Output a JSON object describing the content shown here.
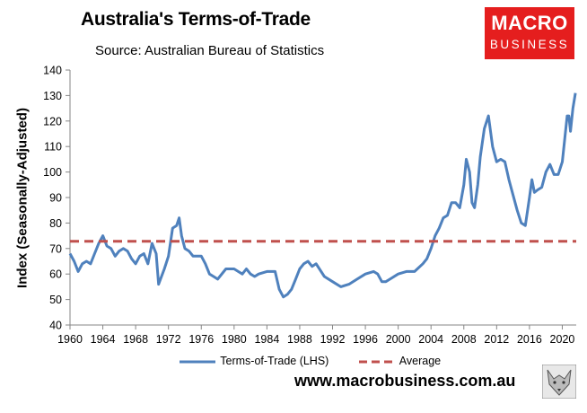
{
  "header": {
    "title": "Australia's Terms-of-Trade",
    "subtitle": "Source: Australian Bureau of Statistics"
  },
  "logo": {
    "line1": "MACRO",
    "line2": "BUSINESS",
    "color": "#e51e1e"
  },
  "footer": {
    "url": "www.macrobusiness.com.au"
  },
  "chart_data": {
    "type": "line",
    "ylabel": "Index (Seasonally-Adjusted)",
    "xlabel": "",
    "ylim": [
      40,
      140
    ],
    "xlim": [
      1960,
      2021.7
    ],
    "y_ticks": [
      40,
      50,
      60,
      70,
      80,
      90,
      100,
      110,
      120,
      130,
      140
    ],
    "x_ticks": [
      "1960",
      "1964",
      "1968",
      "1972",
      "1976",
      "1980",
      "1984",
      "1988",
      "1992",
      "1996",
      "2000",
      "2004",
      "2008",
      "2012",
      "2016",
      "2020"
    ],
    "grid": false,
    "legend_position": "bottom",
    "series": [
      {
        "name": "Terms-of-Trade (LHS)",
        "color": "#4f81bd",
        "style": "solid",
        "x": [
          1960,
          1960.5,
          1961,
          1961.5,
          1962,
          1962.5,
          1963,
          1963.5,
          1964,
          1964.5,
          1965,
          1965.5,
          1966,
          1966.5,
          1967,
          1967.5,
          1968,
          1968.5,
          1969,
          1969.5,
          1970,
          1970.5,
          1970.8,
          1971.5,
          1972,
          1972.5,
          1973,
          1973.3,
          1973.6,
          1974,
          1974.5,
          1975,
          1976,
          1976.5,
          1977,
          1977.5,
          1978,
          1979,
          1980,
          1980.5,
          1981,
          1981.5,
          1982,
          1982.5,
          1983,
          1984,
          1985,
          1985.5,
          1986,
          1986.5,
          1987,
          1987.5,
          1988,
          1988.5,
          1989,
          1989.5,
          1990,
          1991,
          1992,
          1993,
          1994,
          1995,
          1996,
          1997,
          1997.5,
          1998,
          1998.5,
          1999,
          2000,
          2001,
          2002,
          2003,
          2003.5,
          2004,
          2004.5,
          2005,
          2005.5,
          2006,
          2006.5,
          2007,
          2007.5,
          2008,
          2008.3,
          2008.7,
          2009,
          2009.3,
          2009.7,
          2010,
          2010.5,
          2011,
          2011.5,
          2012,
          2012.5,
          2013,
          2013.5,
          2014,
          2014.5,
          2015,
          2015.5,
          2016,
          2016.3,
          2016.6,
          2017,
          2017.5,
          2018,
          2018.5,
          2019,
          2019.5,
          2020,
          2020.3,
          2020.6,
          2020.8,
          2021,
          2021.3,
          2021.6
        ],
        "values": [
          68,
          65,
          61,
          64,
          65,
          64,
          68,
          72,
          75,
          71,
          70,
          67,
          69,
          70,
          69,
          66,
          64,
          67,
          68,
          64,
          72,
          68,
          56,
          62,
          67,
          78,
          79,
          82,
          75,
          70,
          69,
          67,
          67,
          64,
          60,
          59,
          58,
          62,
          62,
          61,
          60,
          62,
          60,
          59,
          60,
          61,
          61,
          54,
          51,
          52,
          54,
          58,
          62,
          64,
          65,
          63,
          64,
          59,
          57,
          55,
          56,
          58,
          60,
          61,
          60,
          57,
          57,
          58,
          60,
          61,
          61,
          64,
          66,
          70,
          75,
          78,
          82,
          83,
          88,
          88,
          86,
          95,
          105,
          100,
          88,
          86,
          95,
          106,
          117,
          122,
          110,
          104,
          105,
          104,
          97,
          91,
          85,
          80,
          79,
          90,
          97,
          92,
          93,
          94,
          100,
          103,
          99,
          99,
          104,
          113,
          122,
          122,
          116,
          125,
          131
        ]
      },
      {
        "name": "Average",
        "color": "#c0504d",
        "style": "dashed",
        "x": [
          1960,
          2021.7
        ],
        "values": [
          72.8,
          72.8
        ]
      }
    ]
  }
}
